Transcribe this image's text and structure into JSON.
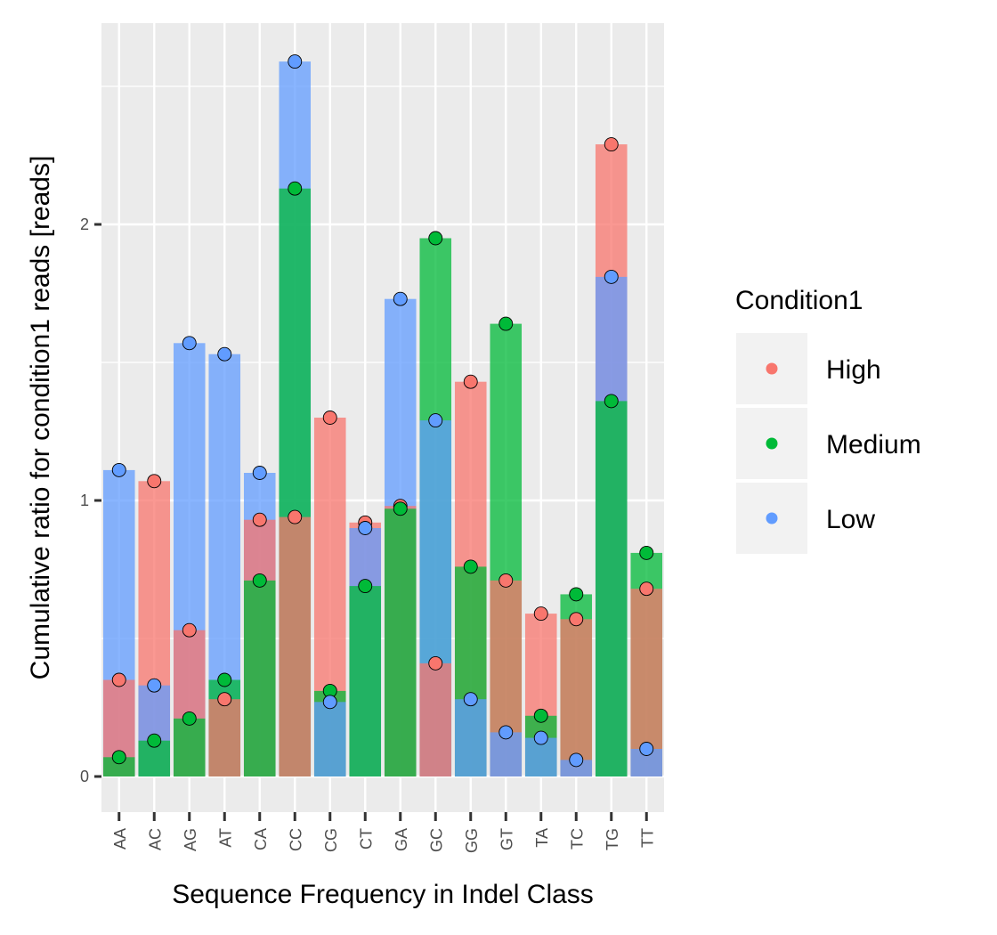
{
  "chart_data": {
    "type": "bar",
    "xlabel": "Sequence Frequency in Indel Class",
    "ylabel": "Cumulative ratio for condition1 reads [reads]",
    "categories": [
      "AA",
      "AC",
      "AG",
      "AT",
      "CA",
      "CC",
      "CG",
      "CT",
      "GA",
      "GC",
      "GG",
      "GT",
      "TA",
      "TC",
      "TG",
      "TT"
    ],
    "yticks": [
      0,
      1,
      2
    ],
    "ylim": [
      -0.12,
      2.72
    ],
    "grid": true,
    "legend": {
      "title": "Condition1",
      "position": "right"
    },
    "series": [
      {
        "name": "High",
        "color": "#F8766D",
        "values": [
          0.35,
          1.07,
          0.53,
          0.28,
          0.93,
          0.94,
          1.3,
          0.92,
          0.98,
          0.41,
          1.43,
          0.71,
          0.59,
          0.57,
          2.29,
          0.68
        ]
      },
      {
        "name": "Medium",
        "color": "#00BA38",
        "values": [
          0.07,
          0.13,
          0.21,
          0.35,
          0.71,
          2.13,
          0.31,
          0.69,
          0.97,
          1.95,
          0.76,
          1.64,
          0.22,
          0.66,
          1.36,
          0.81
        ]
      },
      {
        "name": "Low",
        "color": "#619CFF",
        "values": [
          1.11,
          0.33,
          1.57,
          1.53,
          1.1,
          2.59,
          0.27,
          0.9,
          1.73,
          1.29,
          0.28,
          0.16,
          0.14,
          0.06,
          1.81,
          0.1
        ]
      }
    ]
  }
}
